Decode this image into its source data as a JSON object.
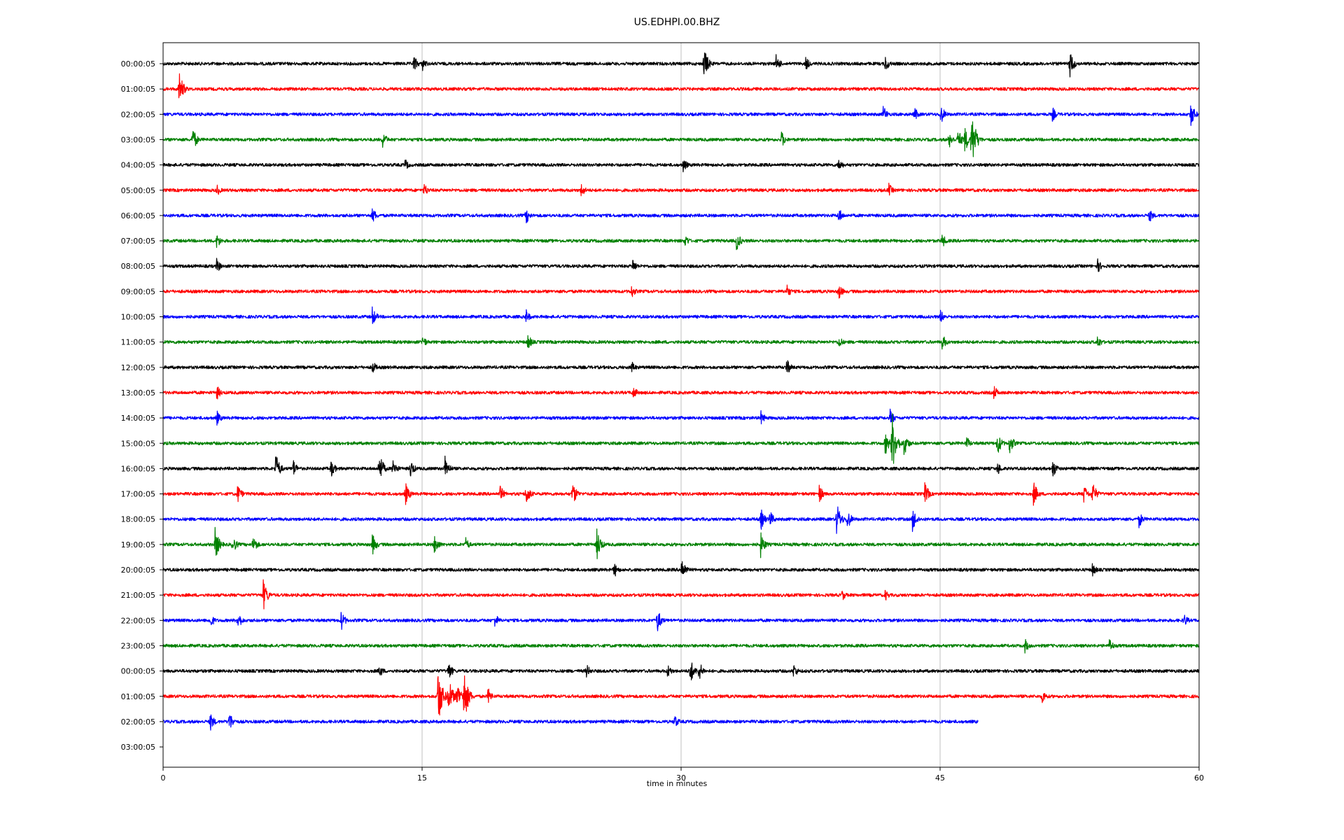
{
  "chart_data": {
    "type": "line",
    "title": "US.EDHPI.00.BHZ",
    "xlabel": "time in minutes",
    "ylabel": "",
    "xlim": [
      0,
      60
    ],
    "xticks": [
      "0",
      "15",
      "30",
      "45",
      "60"
    ],
    "xtick_values": [
      0,
      15,
      30,
      45,
      60
    ],
    "grid": "vertical lines at x ticks",
    "trace_colors": [
      "#000000",
      "#ff0000",
      "#0000ff",
      "#008000"
    ],
    "rows": [
      {
        "label": "00:00:05",
        "end": 60,
        "events": [
          {
            "t": 14.5,
            "a": 0.35
          },
          {
            "t": 15.0,
            "a": 0.3
          },
          {
            "t": 31.3,
            "a": 0.7
          },
          {
            "t": 35.5,
            "a": 0.35
          },
          {
            "t": 37.2,
            "a": 0.3
          },
          {
            "t": 41.8,
            "a": 0.35
          },
          {
            "t": 52.5,
            "a": 0.55
          }
        ]
      },
      {
        "label": "01:00:05",
        "end": 60,
        "events": [
          {
            "t": 0.9,
            "a": 0.75
          }
        ]
      },
      {
        "label": "02:00:05",
        "end": 60,
        "events": [
          {
            "t": 41.7,
            "a": 0.35
          },
          {
            "t": 43.5,
            "a": 0.3
          },
          {
            "t": 45.0,
            "a": 0.45
          },
          {
            "t": 51.5,
            "a": 0.3
          },
          {
            "t": 59.5,
            "a": 0.5
          }
        ]
      },
      {
        "label": "03:00:05",
        "end": 60,
        "events": [
          {
            "t": 1.7,
            "a": 0.5
          },
          {
            "t": 12.7,
            "a": 0.35
          },
          {
            "t": 35.8,
            "a": 0.35
          },
          {
            "t": 45.5,
            "a": 0.35
          },
          {
            "t": 46.0,
            "a": 0.45
          },
          {
            "t": 46.4,
            "a": 0.55
          },
          {
            "t": 46.8,
            "a": 1.3
          }
        ]
      },
      {
        "label": "04:00:05",
        "end": 60,
        "events": [
          {
            "t": 14.0,
            "a": 0.25
          },
          {
            "t": 30.1,
            "a": 0.3
          },
          {
            "t": 39.1,
            "a": 0.3
          }
        ]
      },
      {
        "label": "05:00:05",
        "end": 60,
        "events": [
          {
            "t": 3.1,
            "a": 0.25
          },
          {
            "t": 15.1,
            "a": 0.3
          },
          {
            "t": 24.2,
            "a": 0.3
          },
          {
            "t": 42.0,
            "a": 0.3
          }
        ]
      },
      {
        "label": "06:00:05",
        "end": 60,
        "events": [
          {
            "t": 12.1,
            "a": 0.35
          },
          {
            "t": 21.0,
            "a": 0.35
          },
          {
            "t": 39.1,
            "a": 0.35
          },
          {
            "t": 57.1,
            "a": 0.3
          }
        ]
      },
      {
        "label": "07:00:05",
        "end": 60,
        "events": [
          {
            "t": 3.1,
            "a": 0.3
          },
          {
            "t": 30.2,
            "a": 0.3
          },
          {
            "t": 33.2,
            "a": 0.4
          },
          {
            "t": 45.1,
            "a": 0.3
          }
        ]
      },
      {
        "label": "08:00:05",
        "end": 60,
        "events": [
          {
            "t": 3.1,
            "a": 0.3
          },
          {
            "t": 27.2,
            "a": 0.3
          },
          {
            "t": 54.1,
            "a": 0.3
          }
        ]
      },
      {
        "label": "09:00:05",
        "end": 60,
        "events": [
          {
            "t": 27.1,
            "a": 0.3
          },
          {
            "t": 36.1,
            "a": 0.3
          },
          {
            "t": 39.1,
            "a": 0.35
          }
        ]
      },
      {
        "label": "10:00:05",
        "end": 60,
        "events": [
          {
            "t": 12.1,
            "a": 0.4
          },
          {
            "t": 21.0,
            "a": 0.3
          },
          {
            "t": 45.0,
            "a": 0.3
          }
        ]
      },
      {
        "label": "11:00:05",
        "end": 60,
        "events": [
          {
            "t": 15.0,
            "a": 0.3
          },
          {
            "t": 21.1,
            "a": 0.35
          },
          {
            "t": 39.1,
            "a": 0.3
          },
          {
            "t": 45.1,
            "a": 0.35
          },
          {
            "t": 54.1,
            "a": 0.3
          }
        ]
      },
      {
        "label": "12:00:05",
        "end": 60,
        "events": [
          {
            "t": 12.1,
            "a": 0.3
          },
          {
            "t": 27.1,
            "a": 0.3
          },
          {
            "t": 36.1,
            "a": 0.35
          }
        ]
      },
      {
        "label": "13:00:05",
        "end": 60,
        "events": [
          {
            "t": 3.1,
            "a": 0.3
          },
          {
            "t": 27.2,
            "a": 0.3
          },
          {
            "t": 48.1,
            "a": 0.3
          }
        ]
      },
      {
        "label": "14:00:05",
        "end": 60,
        "events": [
          {
            "t": 3.1,
            "a": 0.3
          },
          {
            "t": 34.6,
            "a": 0.3
          },
          {
            "t": 42.1,
            "a": 0.35
          }
        ]
      },
      {
        "label": "15:00:05",
        "end": 60,
        "events": [
          {
            "t": 41.8,
            "a": 0.5
          },
          {
            "t": 42.2,
            "a": 1.25
          },
          {
            "t": 42.9,
            "a": 0.5
          },
          {
            "t": 46.5,
            "a": 0.3
          },
          {
            "t": 48.3,
            "a": 0.5
          },
          {
            "t": 49.0,
            "a": 0.45
          }
        ]
      },
      {
        "label": "16:00:05",
        "end": 60,
        "events": [
          {
            "t": 6.5,
            "a": 0.65
          },
          {
            "t": 7.5,
            "a": 0.4
          },
          {
            "t": 9.7,
            "a": 0.4
          },
          {
            "t": 12.5,
            "a": 0.65
          },
          {
            "t": 13.3,
            "a": 0.4
          },
          {
            "t": 14.3,
            "a": 0.4
          },
          {
            "t": 16.3,
            "a": 0.55
          },
          {
            "t": 48.3,
            "a": 0.3
          },
          {
            "t": 51.5,
            "a": 0.4
          }
        ]
      },
      {
        "label": "17:00:05",
        "end": 60,
        "events": [
          {
            "t": 4.3,
            "a": 0.4
          },
          {
            "t": 14.0,
            "a": 0.5
          },
          {
            "t": 19.5,
            "a": 0.35
          },
          {
            "t": 21.0,
            "a": 0.5
          },
          {
            "t": 23.7,
            "a": 0.5
          },
          {
            "t": 38.0,
            "a": 0.35
          },
          {
            "t": 44.1,
            "a": 0.45
          },
          {
            "t": 50.4,
            "a": 0.5
          },
          {
            "t": 53.3,
            "a": 0.4
          },
          {
            "t": 53.8,
            "a": 0.5
          }
        ]
      },
      {
        "label": "18:00:05",
        "end": 60,
        "events": [
          {
            "t": 34.6,
            "a": 0.45
          },
          {
            "t": 35.1,
            "a": 0.4
          },
          {
            "t": 39.0,
            "a": 0.65
          },
          {
            "t": 39.6,
            "a": 0.45
          },
          {
            "t": 43.4,
            "a": 0.5
          },
          {
            "t": 56.5,
            "a": 0.35
          }
        ]
      },
      {
        "label": "19:00:05",
        "end": 60,
        "events": [
          {
            "t": 3.0,
            "a": 0.65
          },
          {
            "t": 4.0,
            "a": 0.4
          },
          {
            "t": 5.2,
            "a": 0.4
          },
          {
            "t": 12.1,
            "a": 0.45
          },
          {
            "t": 15.7,
            "a": 0.45
          },
          {
            "t": 17.5,
            "a": 0.3
          },
          {
            "t": 25.1,
            "a": 0.65
          },
          {
            "t": 34.6,
            "a": 0.5
          }
        ]
      },
      {
        "label": "20:00:05",
        "end": 60,
        "events": [
          {
            "t": 26.1,
            "a": 0.35
          },
          {
            "t": 30.0,
            "a": 0.55
          },
          {
            "t": 53.8,
            "a": 0.3
          }
        ]
      },
      {
        "label": "21:00:05",
        "end": 60,
        "events": [
          {
            "t": 5.8,
            "a": 0.6
          },
          {
            "t": 39.3,
            "a": 0.25
          },
          {
            "t": 41.8,
            "a": 0.25
          }
        ]
      },
      {
        "label": "22:00:05",
        "end": 60,
        "events": [
          {
            "t": 2.7,
            "a": 0.35
          },
          {
            "t": 4.3,
            "a": 0.4
          },
          {
            "t": 10.3,
            "a": 0.4
          },
          {
            "t": 19.2,
            "a": 0.3
          },
          {
            "t": 28.6,
            "a": 0.5
          },
          {
            "t": 59.1,
            "a": 0.3
          }
        ]
      },
      {
        "label": "23:00:05",
        "end": 60,
        "events": [
          {
            "t": 49.9,
            "a": 0.3
          },
          {
            "t": 54.8,
            "a": 0.3
          }
        ]
      },
      {
        "label": "00:00:05",
        "end": 60,
        "events": [
          {
            "t": 12.5,
            "a": 0.3
          },
          {
            "t": 16.5,
            "a": 0.4
          },
          {
            "t": 24.5,
            "a": 0.3
          },
          {
            "t": 29.2,
            "a": 0.3
          },
          {
            "t": 30.5,
            "a": 0.55
          },
          {
            "t": 31.0,
            "a": 0.45
          },
          {
            "t": 36.5,
            "a": 0.3
          }
        ]
      },
      {
        "label": "01:00:05",
        "end": 60,
        "events": [
          {
            "t": 15.9,
            "a": 1.25
          },
          {
            "t": 16.5,
            "a": 0.85
          },
          {
            "t": 17.0,
            "a": 0.65
          },
          {
            "t": 17.4,
            "a": 1.2
          },
          {
            "t": 18.8,
            "a": 0.35
          },
          {
            "t": 50.9,
            "a": 0.3
          }
        ]
      },
      {
        "label": "02:00:05",
        "end": 47.2,
        "events": [
          {
            "t": 2.7,
            "a": 0.4
          },
          {
            "t": 3.8,
            "a": 0.45
          },
          {
            "t": 29.6,
            "a": 0.3
          }
        ]
      },
      {
        "label": "03:00:05",
        "end": 0,
        "events": []
      }
    ]
  }
}
